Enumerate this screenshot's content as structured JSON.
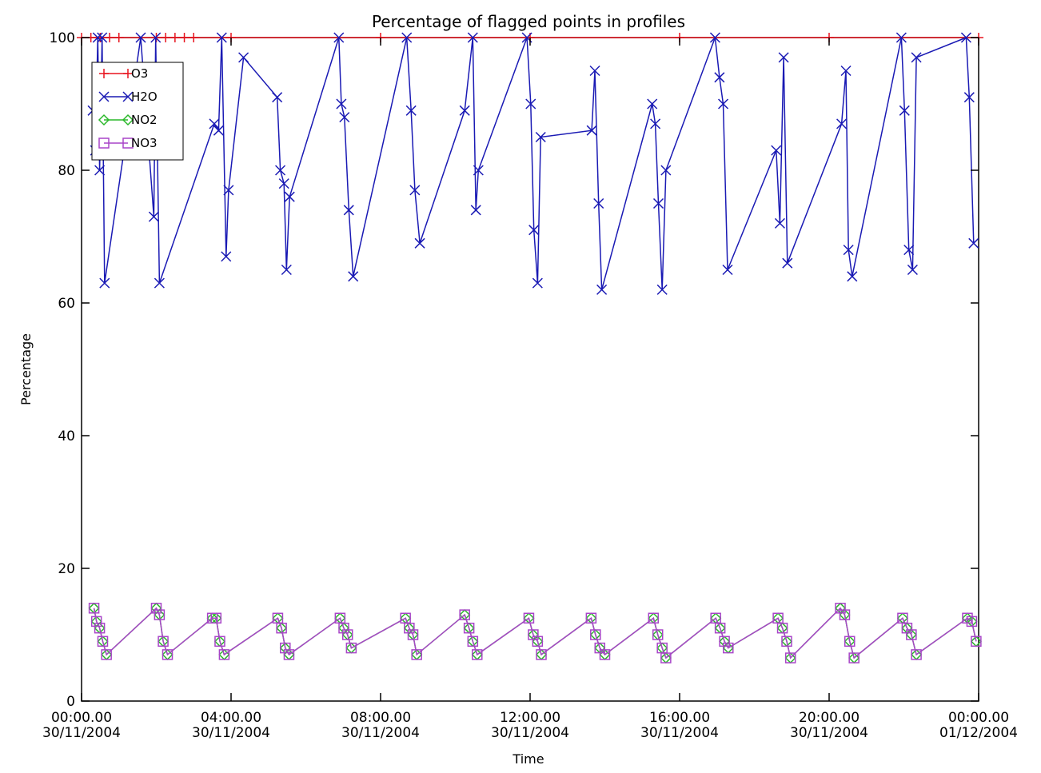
{
  "chart_data": {
    "type": "line",
    "title": "Percentage of flagged points in profiles",
    "xlabel": "Time",
    "ylabel": "Percentage",
    "xlim": [
      "2004-11-30T00:00",
      "2004-12-01T00:00"
    ],
    "ylim": [
      0,
      100
    ],
    "grid": false,
    "legend_placement": "top-left",
    "x_ticks": [
      {
        "value": "2004-11-30T00:00",
        "time": "00:00.00",
        "date": "30/11/2004"
      },
      {
        "value": "2004-11-30T04:00",
        "time": "04:00.00",
        "date": "30/11/2004"
      },
      {
        "value": "2004-11-30T08:00",
        "time": "08:00.00",
        "date": "30/11/2004"
      },
      {
        "value": "2004-11-30T12:00",
        "time": "12:00.00",
        "date": "30/11/2004"
      },
      {
        "value": "2004-11-30T16:00",
        "time": "16:00.00",
        "date": "30/11/2004"
      },
      {
        "value": "2004-11-30T20:00",
        "time": "20:00.00",
        "date": "30/11/2004"
      },
      {
        "value": "2004-12-01T00:00",
        "time": "00:00.00",
        "date": "01/12/2004"
      }
    ],
    "y_ticks": [
      0,
      20,
      40,
      60,
      80,
      100
    ],
    "series": [
      {
        "name": "O3",
        "color": "#e8141e",
        "marker": "plus",
        "x": [
          "2004-11-30T00:00",
          "2004-11-30T00:15",
          "2004-11-30T00:30",
          "2004-11-30T00:45",
          "2004-11-30T01:00",
          "2004-11-30T02:00",
          "2004-11-30T02:15",
          "2004-11-30T02:30",
          "2004-11-30T02:45",
          "2004-11-30T03:00",
          "2004-11-30T04:00",
          "2004-11-30T08:00",
          "2004-11-30T12:00",
          "2004-11-30T16:00",
          "2004-11-30T20:00",
          "2004-12-01T00:00"
        ],
        "y": [
          100,
          100,
          100,
          100,
          100,
          100,
          100,
          100,
          100,
          100,
          100,
          100,
          100,
          100,
          100,
          100
        ]
      },
      {
        "name": "H2O",
        "color": "#1a1ab4",
        "marker": "x",
        "x": [
          "2004-11-30T00:18",
          "2004-11-30T00:22",
          "2004-11-30T00:26",
          "2004-11-30T00:29",
          "2004-11-30T00:33",
          "2004-11-30T00:37",
          "2004-11-30T01:35",
          "2004-11-30T01:56",
          "2004-11-30T01:59",
          "2004-11-30T02:05",
          "2004-11-30T03:33",
          "2004-11-30T03:40",
          "2004-11-30T03:45",
          "2004-11-30T03:52",
          "2004-11-30T03:56",
          "2004-11-30T04:20",
          "2004-11-30T05:14",
          "2004-11-30T05:19",
          "2004-11-30T05:25",
          "2004-11-30T05:29",
          "2004-11-30T05:34",
          "2004-11-30T06:53",
          "2004-11-30T06:57",
          "2004-11-30T07:02",
          "2004-11-30T07:09",
          "2004-11-30T07:16",
          "2004-11-30T08:42",
          "2004-11-30T08:49",
          "2004-11-30T08:55",
          "2004-11-30T09:03",
          "2004-11-30T10:15",
          "2004-11-30T10:28",
          "2004-11-30T10:33",
          "2004-11-30T10:37",
          "2004-11-30T11:55",
          "2004-11-30T12:01",
          "2004-11-30T12:06",
          "2004-11-30T12:12",
          "2004-11-30T12:17",
          "2004-11-30T13:39",
          "2004-11-30T13:44",
          "2004-11-30T13:50",
          "2004-11-30T13:55",
          "2004-11-30T15:16",
          "2004-11-30T15:21",
          "2004-11-30T15:26",
          "2004-11-30T15:32",
          "2004-11-30T15:38",
          "2004-11-30T16:57",
          "2004-11-30T17:04",
          "2004-11-30T17:10",
          "2004-11-30T17:17",
          "2004-11-30T18:35",
          "2004-11-30T18:41",
          "2004-11-30T18:47",
          "2004-11-30T18:53",
          "2004-11-30T20:20",
          "2004-11-30T20:27",
          "2004-11-30T20:31",
          "2004-11-30T20:37",
          "2004-11-30T21:56",
          "2004-11-30T22:01",
          "2004-11-30T22:08",
          "2004-11-30T22:14",
          "2004-11-30T22:20",
          "2004-11-30T23:40",
          "2004-11-30T23:45",
          "2004-11-30T23:52"
        ],
        "y": [
          89,
          83,
          100,
          80,
          100,
          63,
          100,
          73,
          100,
          63,
          87,
          86,
          100,
          67,
          77,
          97,
          91,
          80,
          78,
          65,
          76,
          100,
          90,
          88,
          74,
          64,
          100,
          89,
          77,
          69,
          89,
          100,
          74,
          80,
          100,
          90,
          71,
          63,
          85,
          86,
          95,
          75,
          62,
          90,
          87,
          75,
          62,
          80,
          100,
          94,
          90,
          65,
          83,
          72,
          97,
          66,
          87,
          95,
          68,
          64,
          100,
          89,
          68,
          65,
          97,
          100,
          91,
          69
        ]
      },
      {
        "name": "NO2",
        "color": "#2ab82a",
        "marker": "diamond",
        "x": [
          "2004-11-30T00:20",
          "2004-11-30T00:24",
          "2004-11-30T00:29",
          "2004-11-30T00:34",
          "2004-11-30T00:40",
          "2004-11-30T02:00",
          "2004-11-30T02:05",
          "2004-11-30T02:11",
          "2004-11-30T02:18",
          "2004-11-30T03:30",
          "2004-11-30T03:36",
          "2004-11-30T03:42",
          "2004-11-30T03:49",
          "2004-11-30T05:15",
          "2004-11-30T05:21",
          "2004-11-30T05:27",
          "2004-11-30T05:33",
          "2004-11-30T06:55",
          "2004-11-30T07:01",
          "2004-11-30T07:07",
          "2004-11-30T07:13",
          "2004-11-30T08:40",
          "2004-11-30T08:46",
          "2004-11-30T08:52",
          "2004-11-30T08:58",
          "2004-11-30T10:15",
          "2004-11-30T10:22",
          "2004-11-30T10:28",
          "2004-11-30T10:35",
          "2004-11-30T11:58",
          "2004-11-30T12:05",
          "2004-11-30T12:12",
          "2004-11-30T12:18",
          "2004-11-30T13:38",
          "2004-11-30T13:45",
          "2004-11-30T13:52",
          "2004-11-30T14:00",
          "2004-11-30T15:18",
          "2004-11-30T15:25",
          "2004-11-30T15:32",
          "2004-11-30T15:38",
          "2004-11-30T16:58",
          "2004-11-30T17:05",
          "2004-11-30T17:12",
          "2004-11-30T17:18",
          "2004-11-30T18:38",
          "2004-11-30T18:45",
          "2004-11-30T18:52",
          "2004-11-30T18:58",
          "2004-11-30T20:18",
          "2004-11-30T20:25",
          "2004-11-30T20:33",
          "2004-11-30T20:40",
          "2004-11-30T21:58",
          "2004-11-30T22:05",
          "2004-11-30T22:12",
          "2004-11-30T22:20",
          "2004-11-30T23:42",
          "2004-11-30T23:49",
          "2004-11-30T23:56"
        ],
        "y": [
          14,
          12,
          11,
          9,
          7,
          14,
          13,
          9,
          7,
          12.5,
          12.5,
          9,
          7,
          12.5,
          11,
          8,
          7,
          12.5,
          11,
          10,
          8,
          12.5,
          11,
          10,
          7,
          13,
          11,
          9,
          7,
          12.5,
          10,
          9,
          7,
          12.5,
          10,
          8,
          7,
          12.5,
          10,
          8,
          6.5,
          12.5,
          11,
          9,
          8,
          12.5,
          11,
          9,
          6.5,
          14,
          13,
          9,
          6.5,
          12.5,
          11,
          10,
          7,
          12.5,
          12,
          9
        ]
      },
      {
        "name": "NO3",
        "color": "#a845c8",
        "marker": "square",
        "x": [
          "2004-11-30T00:20",
          "2004-11-30T00:24",
          "2004-11-30T00:29",
          "2004-11-30T00:34",
          "2004-11-30T00:40",
          "2004-11-30T02:00",
          "2004-11-30T02:05",
          "2004-11-30T02:11",
          "2004-11-30T02:18",
          "2004-11-30T03:30",
          "2004-11-30T03:36",
          "2004-11-30T03:42",
          "2004-11-30T03:49",
          "2004-11-30T05:15",
          "2004-11-30T05:21",
          "2004-11-30T05:27",
          "2004-11-30T05:33",
          "2004-11-30T06:55",
          "2004-11-30T07:01",
          "2004-11-30T07:07",
          "2004-11-30T07:13",
          "2004-11-30T08:40",
          "2004-11-30T08:46",
          "2004-11-30T08:52",
          "2004-11-30T08:58",
          "2004-11-30T10:15",
          "2004-11-30T10:22",
          "2004-11-30T10:28",
          "2004-11-30T10:35",
          "2004-11-30T11:58",
          "2004-11-30T12:05",
          "2004-11-30T12:12",
          "2004-11-30T12:18",
          "2004-11-30T13:38",
          "2004-11-30T13:45",
          "2004-11-30T13:52",
          "2004-11-30T14:00",
          "2004-11-30T15:18",
          "2004-11-30T15:25",
          "2004-11-30T15:32",
          "2004-11-30T15:38",
          "2004-11-30T16:58",
          "2004-11-30T17:05",
          "2004-11-30T17:12",
          "2004-11-30T17:18",
          "2004-11-30T18:38",
          "2004-11-30T18:45",
          "2004-11-30T18:52",
          "2004-11-30T18:58",
          "2004-11-30T20:18",
          "2004-11-30T20:25",
          "2004-11-30T20:33",
          "2004-11-30T20:40",
          "2004-11-30T21:58",
          "2004-11-30T22:05",
          "2004-11-30T22:12",
          "2004-11-30T22:20",
          "2004-11-30T23:42",
          "2004-11-30T23:49",
          "2004-11-30T23:56"
        ],
        "y": [
          14,
          12,
          11,
          9,
          7,
          14,
          13,
          9,
          7,
          12.5,
          12.5,
          9,
          7,
          12.5,
          11,
          8,
          7,
          12.5,
          11,
          10,
          8,
          12.5,
          11,
          10,
          7,
          13,
          11,
          9,
          7,
          12.5,
          10,
          9,
          7,
          12.5,
          10,
          8,
          7,
          12.5,
          10,
          8,
          6.5,
          12.5,
          11,
          9,
          8,
          12.5,
          11,
          9,
          6.5,
          14,
          13,
          9,
          6.5,
          12.5,
          11,
          10,
          7,
          12.5,
          12,
          9
        ]
      }
    ]
  }
}
